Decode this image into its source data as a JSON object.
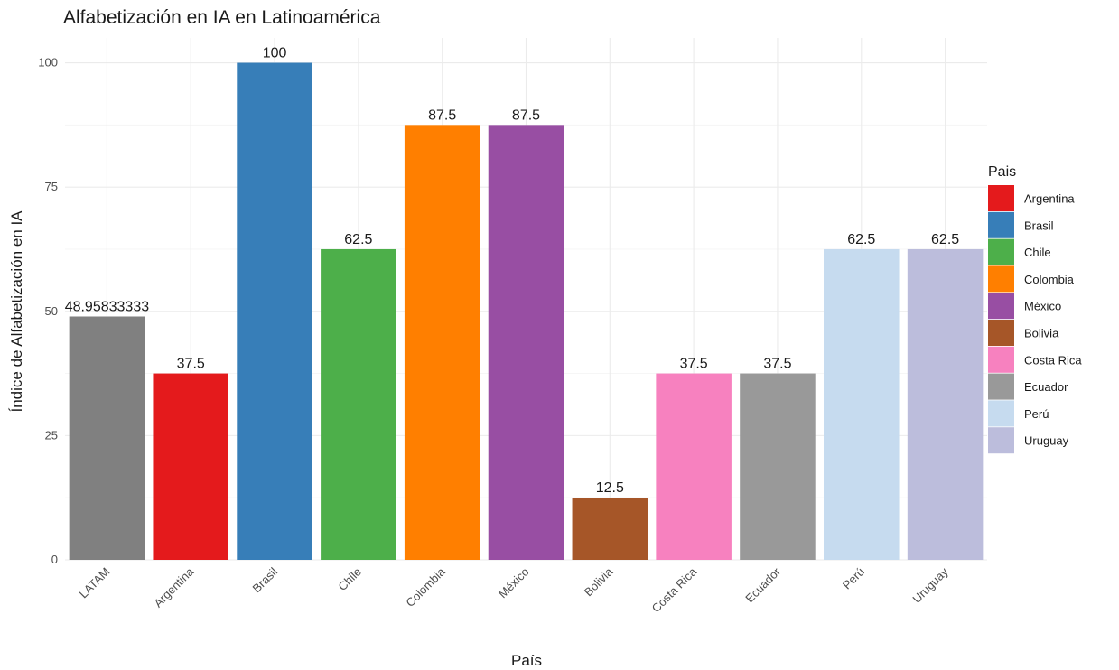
{
  "chart_data": {
    "type": "bar",
    "title": "Alfabetización en IA en Latinoamérica",
    "xlabel": "País",
    "ylabel": "Índice de Alfabetización en IA",
    "ylim": [
      0,
      105
    ],
    "yticks": [
      0,
      25,
      50,
      75,
      100
    ],
    "grid": true,
    "legend_position": "right",
    "legend_title": "Pais",
    "categories": [
      "LATAM",
      "Argentina",
      "Brasil",
      "Chile",
      "Colombia",
      "México",
      "Bolivia",
      "Costa Rica",
      "Ecuador",
      "Perú",
      "Uruguay"
    ],
    "values": [
      48.95833333,
      37.5,
      100,
      62.5,
      87.5,
      87.5,
      12.5,
      37.5,
      37.5,
      62.5,
      62.5
    ],
    "value_labels": [
      "48.95833333",
      "37.5",
      "100",
      "62.5",
      "87.5",
      "87.5",
      "12.5",
      "37.5",
      "37.5",
      "62.5",
      "62.5"
    ],
    "colors": [
      "#808080",
      "#E41A1C",
      "#377EB8",
      "#4DAF4A",
      "#FF7F00",
      "#984EA3",
      "#A65628",
      "#F781BF",
      "#999999",
      "#C6DBEF",
      "#BCBDDC"
    ],
    "legend": [
      {
        "label": "Argentina",
        "color": "#E41A1C"
      },
      {
        "label": "Brasil",
        "color": "#377EB8"
      },
      {
        "label": "Chile",
        "color": "#4DAF4A"
      },
      {
        "label": "Colombia",
        "color": "#FF7F00"
      },
      {
        "label": "México",
        "color": "#984EA3"
      },
      {
        "label": "Bolivia",
        "color": "#A65628"
      },
      {
        "label": "Costa Rica",
        "color": "#F781BF"
      },
      {
        "label": "Ecuador",
        "color": "#999999"
      },
      {
        "label": "Perú",
        "color": "#C6DBEF"
      },
      {
        "label": "Uruguay",
        "color": "#BCBDDC"
      }
    ]
  }
}
